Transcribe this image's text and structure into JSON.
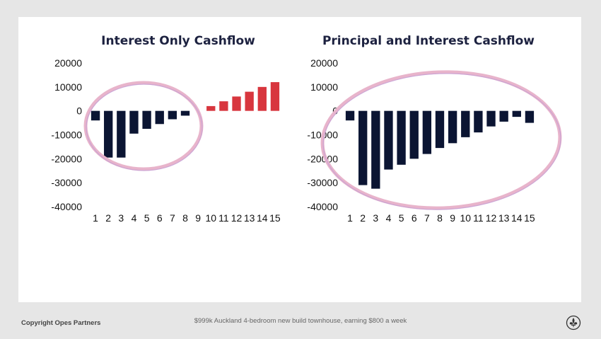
{
  "footer": {
    "copyright": "Copyright Opes Partners",
    "caption": "$999k Auckland 4-bedroom new build townhouse, earning $800 a week",
    "logo_icon": "fleur-de-lis-icon"
  },
  "colors": {
    "negative": "#0b1533",
    "positive": "#d8363e",
    "highlight": "#e8b4cb"
  },
  "chart_data": [
    {
      "type": "bar",
      "title": "Interest Only Cashflow",
      "xlabel": "",
      "ylabel": "",
      "categories": [
        "1",
        "2",
        "3",
        "4",
        "5",
        "6",
        "7",
        "8",
        "9",
        "10",
        "11",
        "12",
        "13",
        "14",
        "15"
      ],
      "values": [
        -4000,
        -19500,
        -19500,
        -9500,
        -7500,
        -5500,
        -3500,
        -2000,
        0,
        2000,
        4000,
        6000,
        8000,
        10000,
        12000
      ],
      "ylim": [
        -40000,
        20000
      ],
      "yticks": [
        "20000",
        "10000",
        "0",
        "-10000",
        "-20000",
        "-30000",
        "-40000"
      ],
      "grid": false,
      "annotation": "highlight-ellipse-years-1-8"
    },
    {
      "type": "bar",
      "title": "Principal and Interest Cashflow",
      "xlabel": "",
      "ylabel": "",
      "categories": [
        "1",
        "2",
        "3",
        "4",
        "5",
        "6",
        "7",
        "8",
        "9",
        "10",
        "11",
        "12",
        "13",
        "14",
        "15"
      ],
      "values": [
        -4000,
        -31000,
        -32500,
        -24500,
        -22500,
        -20000,
        -18000,
        -15500,
        -13500,
        -11000,
        -9000,
        -6500,
        -4500,
        -2500,
        -5000
      ],
      "ylim": [
        -40000,
        20000
      ],
      "yticks": [
        "20000",
        "10000",
        "0",
        "-10000",
        "-20000",
        "-30000",
        "-40000"
      ],
      "grid": false,
      "annotation": "highlight-ellipse-years-1-15"
    }
  ]
}
